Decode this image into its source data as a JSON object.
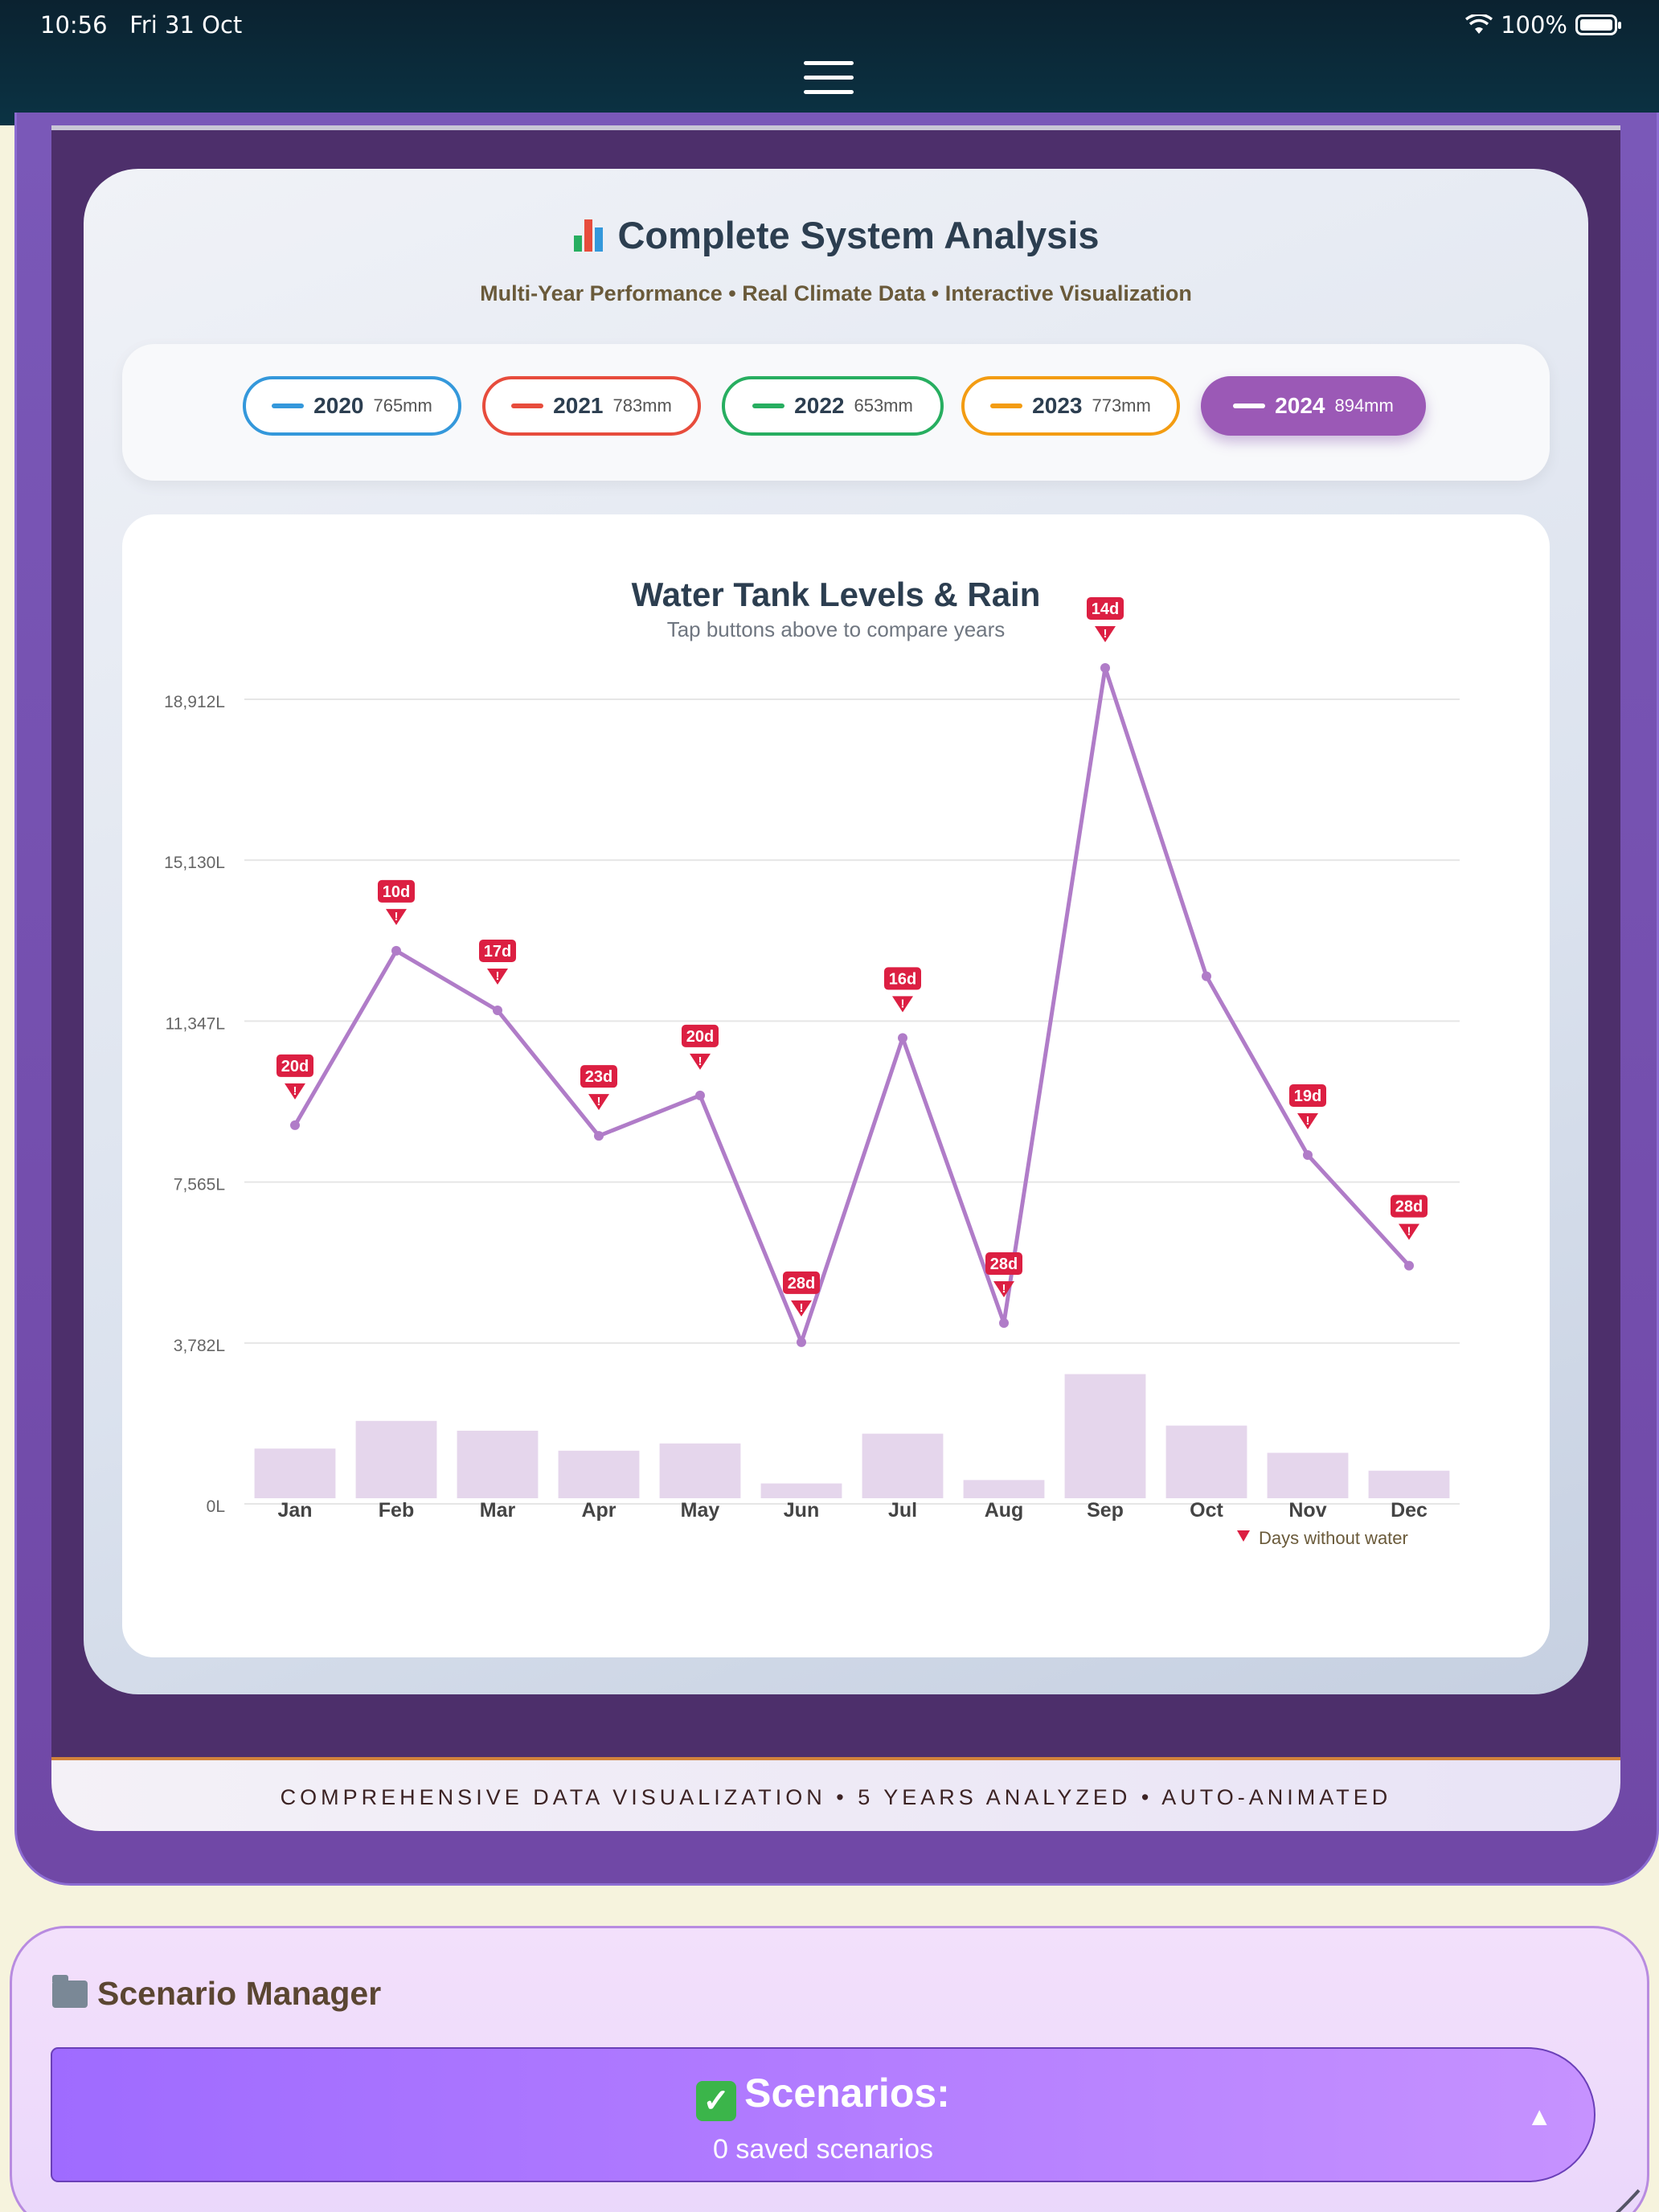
{
  "status_bar": {
    "time": "10:56",
    "date": "Fri 31 Oct",
    "battery": "100%"
  },
  "analysis": {
    "title": "Complete System Analysis",
    "subtitle": "Multi-Year Performance • Real Climate Data • Interactive Visualization",
    "years": [
      {
        "year": "2020",
        "rain": "765mm",
        "color": "#3498db",
        "active": false
      },
      {
        "year": "2021",
        "rain": "783mm",
        "color": "#e74c3c",
        "active": false
      },
      {
        "year": "2022",
        "rain": "653mm",
        "color": "#27ae60",
        "active": false
      },
      {
        "year": "2023",
        "rain": "773mm",
        "color": "#f39c12",
        "active": false
      },
      {
        "year": "2024",
        "rain": "894mm",
        "color": "#9b59b6",
        "active": true
      }
    ],
    "footer": "COMPREHENSIVE DATA VISUALIZATION • 5 YEARS ANALYZED • AUTO-ANIMATED"
  },
  "chart_data": {
    "type": "line",
    "title": "Water Tank Levels & Rain",
    "subtitle": "Tap buttons above to compare years",
    "categories": [
      "Jan",
      "Feb",
      "Mar",
      "Apr",
      "May",
      "Jun",
      "Jul",
      "Aug",
      "Sep",
      "Oct",
      "Nov",
      "Dec"
    ],
    "ytick_labels": [
      "0L",
      "3,782L",
      "7,565L",
      "11,347L",
      "15,130L",
      "18,912L"
    ],
    "ytick_values": [
      0,
      3782,
      7565,
      11347,
      15130,
      18912
    ],
    "ylim": [
      0,
      18912
    ],
    "grid": true,
    "series": [
      {
        "name": "2024",
        "color": "#b07cc8",
        "values": [
          8900,
          13000,
          11600,
          8650,
          9600,
          3800,
          10950,
          4250,
          19650,
          12400,
          8200,
          5600
        ]
      }
    ],
    "rain_bars": [
      1300,
      1950,
      1720,
      1250,
      1420,
      480,
      1650,
      560,
      3050,
      1840,
      1200,
      780
    ],
    "days_without_water": [
      "20d",
      "10d",
      "17d",
      "23d",
      "20d",
      "28d",
      "16d",
      "28d",
      "14d",
      "",
      "19d",
      "28d"
    ],
    "legend_label": "Days without water",
    "legend_placement": "bottom-right"
  },
  "scenario_manager": {
    "title": "Scenario Manager",
    "button_label": "Scenarios:",
    "count_text": "0 saved scenarios",
    "caret": "▲"
  }
}
